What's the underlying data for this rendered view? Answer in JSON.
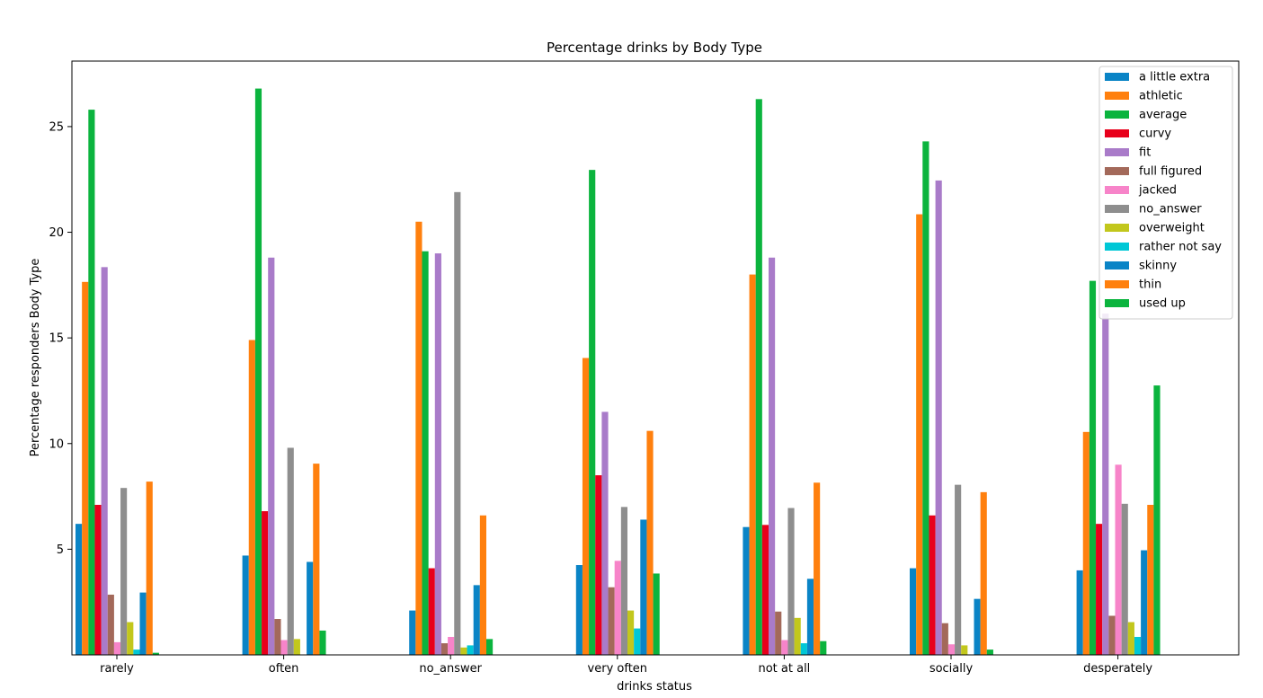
{
  "chart_data": {
    "type": "bar",
    "title": "Percentage drinks by Body Type",
    "xlabel": "drinks status",
    "ylabel": "Percentage responders Body Type",
    "categories": [
      "rarely",
      "often",
      "no_answer",
      "very often",
      "not at all",
      "socially",
      "desperately"
    ],
    "ylim": [
      0,
      28.1
    ],
    "yticks": [
      5,
      10,
      15,
      20,
      25
    ],
    "grid": false,
    "legend_position": "top-right",
    "series": [
      {
        "name": "a little extra",
        "color": "#0a84c6",
        "values": [
          6.2,
          4.7,
          2.1,
          4.25,
          6.05,
          4.1,
          4.0
        ]
      },
      {
        "name": "athletic",
        "color": "#ff800e",
        "values": [
          17.65,
          14.9,
          20.5,
          14.05,
          18.0,
          20.85,
          10.55
        ]
      },
      {
        "name": "average",
        "color": "#0bb43e",
        "values": [
          25.8,
          26.8,
          19.1,
          22.95,
          26.3,
          24.3,
          17.7
        ]
      },
      {
        "name": "curvy",
        "color": "#e8001b",
        "values": [
          7.1,
          6.8,
          4.1,
          8.5,
          6.15,
          6.6,
          6.2
        ]
      },
      {
        "name": "fit",
        "color": "#a97bc9",
        "values": [
          18.35,
          18.8,
          19.0,
          11.5,
          18.8,
          22.45,
          16.15
        ]
      },
      {
        "name": "full figured",
        "color": "#a3695a",
        "values": [
          2.85,
          1.7,
          0.55,
          3.2,
          2.05,
          1.5,
          1.85
        ]
      },
      {
        "name": "jacked",
        "color": "#f784c9",
        "values": [
          0.6,
          0.7,
          0.85,
          4.45,
          0.7,
          0.5,
          9.0
        ]
      },
      {
        "name": "no_answer",
        "color": "#8e8e8e",
        "values": [
          7.9,
          9.8,
          21.9,
          7.0,
          6.95,
          8.05,
          7.15
        ]
      },
      {
        "name": "overweight",
        "color": "#c2c71c",
        "values": [
          1.55,
          0.75,
          0.35,
          2.1,
          1.75,
          0.45,
          1.55
        ]
      },
      {
        "name": "rather not say",
        "color": "#00c7d6",
        "values": [
          0.25,
          0.0,
          0.45,
          1.25,
          0.55,
          0.0,
          0.85
        ]
      },
      {
        "name": "skinny",
        "color": "#0a84c6",
        "values": [
          2.95,
          4.4,
          3.3,
          6.4,
          3.6,
          2.65,
          4.95
        ]
      },
      {
        "name": "thin",
        "color": "#ff800e",
        "values": [
          8.2,
          9.05,
          6.6,
          10.6,
          8.15,
          7.7,
          7.1
        ]
      },
      {
        "name": "used up",
        "color": "#0bb43e",
        "values": [
          0.1,
          1.15,
          0.75,
          3.85,
          0.65,
          0.25,
          12.75
        ]
      }
    ]
  }
}
